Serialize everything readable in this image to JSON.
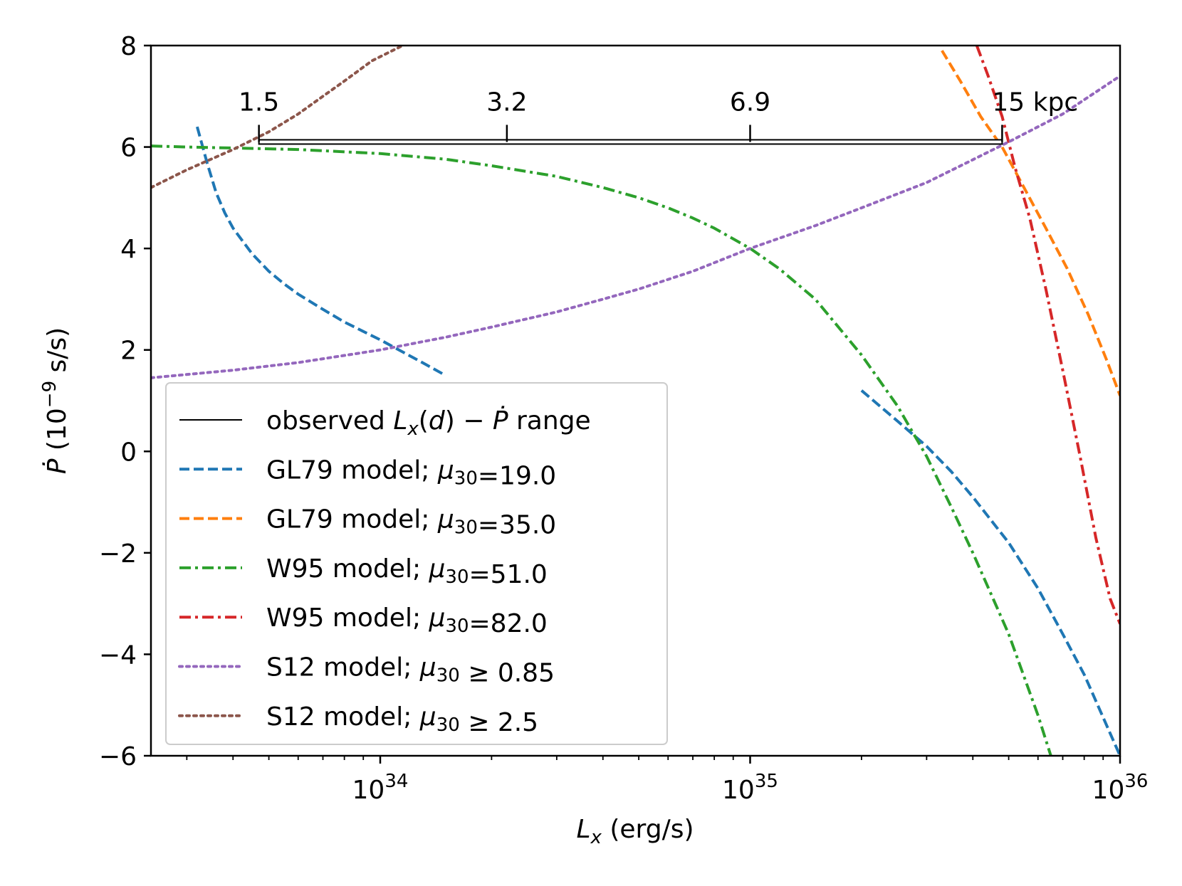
{
  "chart_data": {
    "type": "line",
    "xscale": "log",
    "xlabel": "L_x (erg/s)",
    "ylabel": "Ṗ (10⁻⁹ s/s)",
    "xlim": [
      2.4e+33,
      1e+36
    ],
    "ylim": [
      -6,
      8
    ],
    "yticks": [
      8,
      6,
      4,
      2,
      0,
      -2,
      -4,
      -6
    ],
    "ytick_labels": [
      "8",
      "6",
      "4",
      "2",
      "0",
      "−2",
      "−4",
      "−6"
    ],
    "xticks_major": [
      {
        "value": 1e+34,
        "base": "10",
        "exp": "34"
      },
      {
        "value": 1e+35,
        "base": "10",
        "exp": "35"
      },
      {
        "value": 1e+36,
        "base": "10",
        "exp": "36"
      }
    ],
    "observed_range": {
      "label": "observed L_x(d) − Ṗ range",
      "x_start": 4.7e+33,
      "x_end": 4.8e+35,
      "y": 6.1,
      "distance_ticks": [
        {
          "x": 4.7e+33,
          "label": "1.5"
        },
        {
          "x": 2.2e+34,
          "label": "3.2"
        },
        {
          "x": 1e+35,
          "label": "6.9"
        },
        {
          "x": 4.8e+35,
          "label": "15 kpc"
        }
      ]
    },
    "series": [
      {
        "name": "GL79 model; μ30=19.0",
        "color": "#1f77b4",
        "style": "dashed",
        "x": [
          3.2e+33,
          3.4e+33,
          3.6e+33,
          3.8e+33,
          4e+33,
          4.5e+33,
          5e+33,
          5.5e+33,
          6e+33,
          7e+33,
          8e+33,
          1e+34,
          1.3e+34,
          1.5e+34
        ],
        "y": [
          6.4,
          5.7,
          5.1,
          4.7,
          4.4,
          3.9,
          3.55,
          3.3,
          3.1,
          2.8,
          2.55,
          2.2,
          1.75,
          1.5
        ],
        "x2": [
          2e+35,
          2.5e+35,
          3e+35,
          3.5e+35,
          4e+35,
          5e+35,
          6e+35,
          7e+35,
          8e+35,
          1e+36
        ],
        "y2": [
          1.2,
          0.6,
          0.1,
          -0.4,
          -0.9,
          -1.8,
          -2.7,
          -3.6,
          -4.4,
          -6.0
        ]
      },
      {
        "name": "GL79 model; μ30=35.0",
        "color": "#ff7f0e",
        "style": "dashed",
        "x": [
          3.3e+35,
          3.7e+35,
          4.2e+35,
          4.8e+35,
          5.5e+35,
          6.3e+35,
          7.2e+35,
          8.2e+35,
          9.2e+35,
          1e+36
        ],
        "y": [
          7.9,
          7.3,
          6.6,
          6.0,
          5.2,
          4.4,
          3.6,
          2.7,
          1.8,
          1.1
        ]
      },
      {
        "name": "W95 model; μ30=51.0",
        "color": "#2ca02c",
        "style": "dashdot",
        "x": [
          2.4e+33,
          3e+33,
          4e+33,
          6e+33,
          1e+34,
          1.5e+34,
          2e+34,
          3e+34,
          4e+34,
          5e+34,
          6e+34,
          7e+34,
          8e+34,
          1e+35,
          1.2e+35,
          1.5e+35,
          2e+35,
          2.5e+35,
          3e+35,
          3.5e+35,
          4e+35,
          5e+35,
          6e+35,
          6.5e+35
        ],
        "y": [
          6.02,
          6.0,
          5.98,
          5.95,
          5.87,
          5.76,
          5.63,
          5.42,
          5.2,
          5.0,
          4.8,
          4.6,
          4.4,
          4.0,
          3.6,
          3.0,
          1.9,
          0.9,
          -0.1,
          -1.1,
          -2.0,
          -3.6,
          -5.2,
          -6.0
        ]
      },
      {
        "name": "W95 model; μ30=82.0",
        "color": "#d62728",
        "style": "dashdot",
        "x": [
          4.1e+35,
          4.4e+35,
          4.8e+35,
          5.2e+35,
          5.7e+35,
          6.3e+35,
          7e+35,
          7.8e+35,
          8.6e+35,
          9.4e+35,
          1e+36
        ],
        "y": [
          8.0,
          7.4,
          6.6,
          5.6,
          4.6,
          3.2,
          1.6,
          -0.1,
          -1.7,
          -2.9,
          -3.4
        ]
      },
      {
        "name": "S12 model; μ30 ≥ 0.85",
        "color": "#9467bd",
        "style": "dotted",
        "x": [
          2.4e+33,
          4e+33,
          6e+33,
          1e+34,
          1.5e+34,
          2e+34,
          3e+34,
          4e+34,
          5e+34,
          7e+34,
          1e+35,
          1.5e+35,
          2e+35,
          3e+35,
          4e+35,
          5e+35,
          7e+35,
          1e+36
        ],
        "y": [
          1.45,
          1.6,
          1.75,
          2.0,
          2.25,
          2.45,
          2.75,
          3.0,
          3.2,
          3.55,
          4.0,
          4.45,
          4.8,
          5.3,
          5.75,
          6.1,
          6.65,
          7.4
        ]
      },
      {
        "name": "S12 model; μ30 ≥ 2.5",
        "color": "#8c564b",
        "style": "dotted",
        "x": [
          2.4e+33,
          3e+33,
          4e+33,
          5e+33,
          6e+33,
          7e+33,
          8e+33,
          9.5e+33,
          1.15e+34
        ],
        "y": [
          5.2,
          5.55,
          5.95,
          6.3,
          6.65,
          7.0,
          7.3,
          7.7,
          8.0
        ]
      }
    ],
    "legend": {
      "placement": "lower-left",
      "entries": [
        {
          "prefix": "observed ",
          "math": "L_x(d) − Ṗ",
          "suffix": " range",
          "color": "#000000",
          "style": "solid"
        },
        {
          "prefix": "GL79 model; ",
          "mu": "μ",
          "sub": "30",
          "suffix": "=19.0",
          "color": "#1f77b4",
          "style": "dashed"
        },
        {
          "prefix": "GL79 model; ",
          "mu": "μ",
          "sub": "30",
          "suffix": "=35.0",
          "color": "#ff7f0e",
          "style": "dashed"
        },
        {
          "prefix": "W95 model; ",
          "mu": "μ",
          "sub": "30",
          "suffix": "=51.0",
          "color": "#2ca02c",
          "style": "dashdot"
        },
        {
          "prefix": "W95 model; ",
          "mu": "μ",
          "sub": "30",
          "suffix": "=82.0",
          "color": "#d62728",
          "style": "dashdot"
        },
        {
          "prefix": "S12 model; ",
          "mu": "μ",
          "sub": "30",
          "suffix": " ≥ 0.85",
          "color": "#9467bd",
          "style": "dotted"
        },
        {
          "prefix": "S12 model; ",
          "mu": "μ",
          "sub": "30",
          "suffix": " ≥ 2.5",
          "color": "#8c564b",
          "style": "dotted"
        }
      ]
    }
  }
}
